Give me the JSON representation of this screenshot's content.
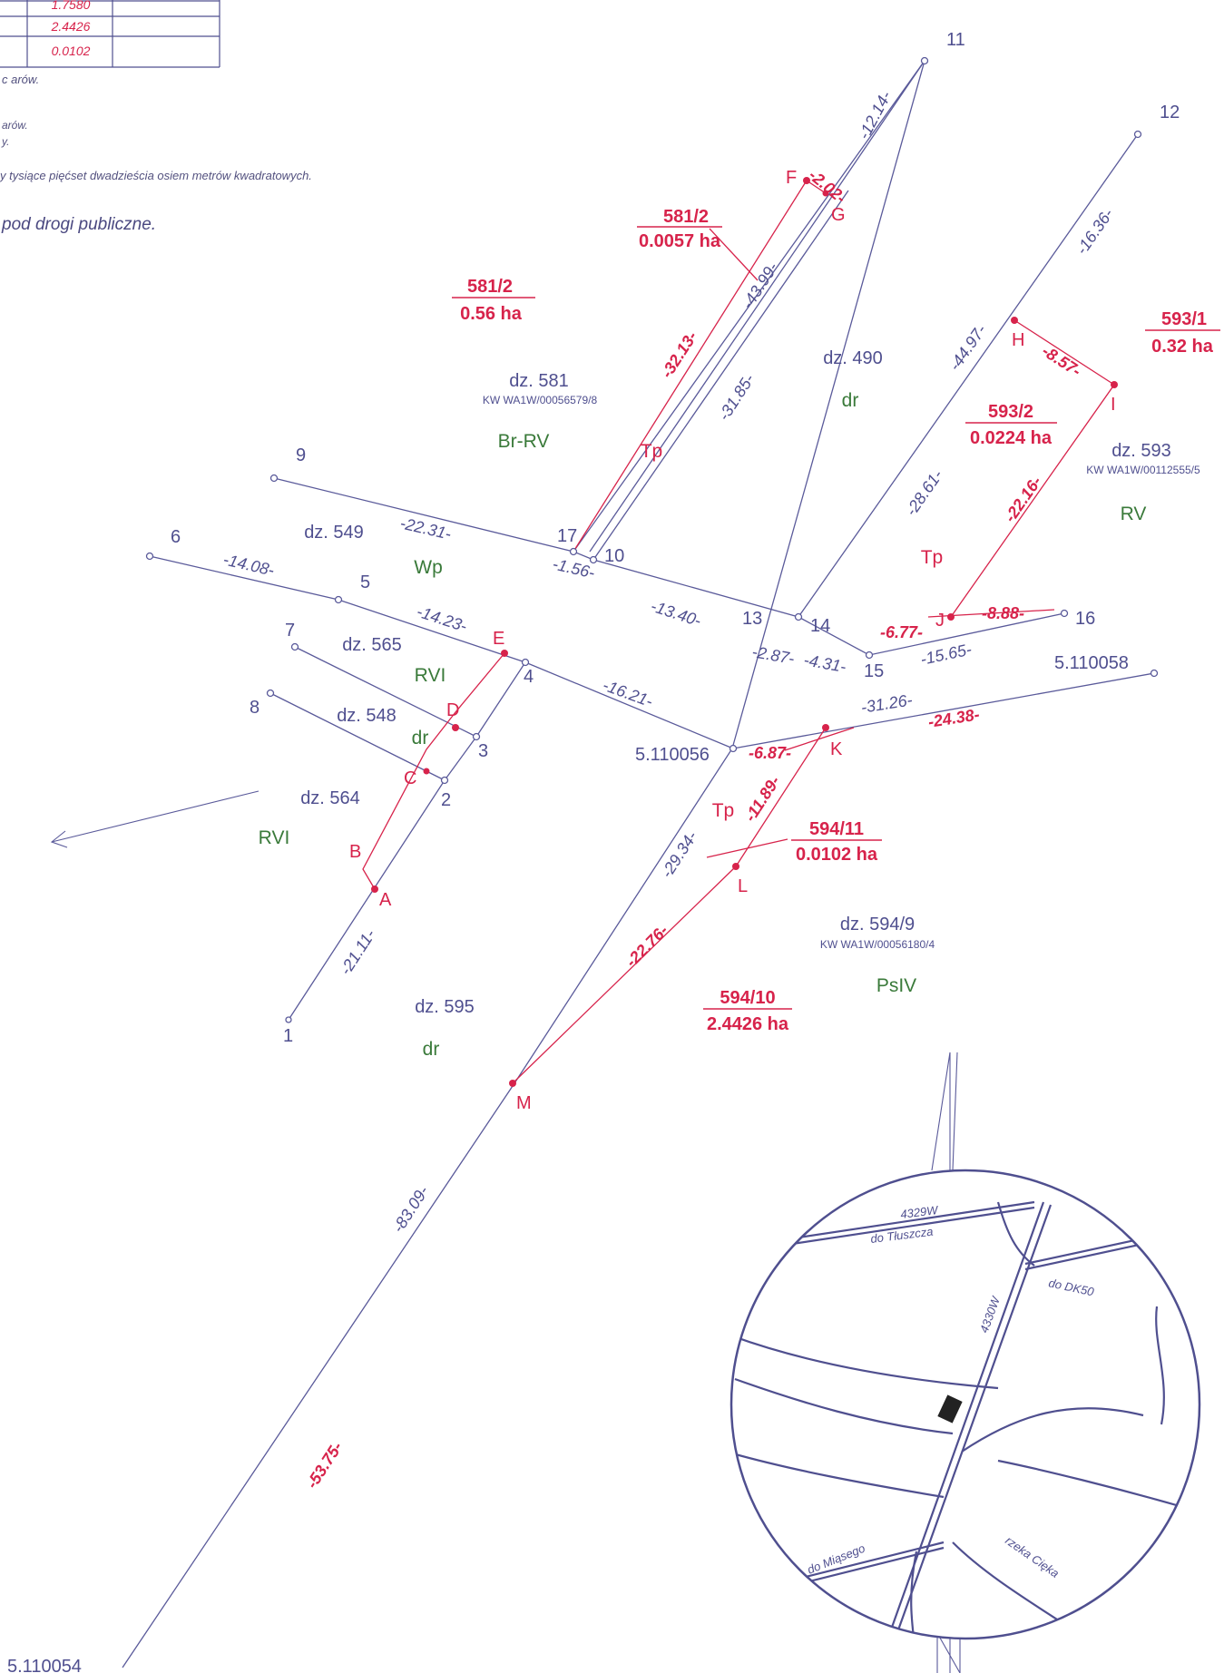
{
  "table": {
    "rows": [
      {
        "value": "1.7580"
      },
      {
        "value": "2.4426"
      },
      {
        "value": "0.0102"
      }
    ]
  },
  "notes": {
    "line1": "c arów.",
    "line2": "arów.",
    "line3": "y.",
    "line4": "y tysiące pięćset dwadzieścia osiem metrów kwadratowych.",
    "line5": "pod drogi publiczne."
  },
  "points": {
    "p1": "1",
    "p2": "2",
    "p3": "3",
    "p4": "4",
    "p5": "5",
    "p6": "6",
    "p7": "7",
    "p8": "8",
    "p9": "9",
    "p10": "10",
    "p11": "11",
    "p12": "12",
    "p13": "13",
    "p14": "14",
    "p15": "15",
    "p16": "16",
    "p17": "17",
    "g056": "5.110056",
    "g058": "5.110058",
    "g054": "5.110054",
    "A": "A",
    "B": "B",
    "C": "C",
    "D": "D",
    "E": "E",
    "F": "F",
    "G": "G",
    "H": "H",
    "I": "I",
    "J": "J",
    "K": "K",
    "L": "L",
    "M": "M"
  },
  "dims_blue": {
    "d1": "-12.14-",
    "d2": "-16.36-",
    "d3": "-43.99-",
    "d4": "-31.85-",
    "d5": "-44.97-",
    "d6": "-28.61-",
    "d7": "-22.31-",
    "d8": "-1.56-",
    "d9": "-14.08-",
    "d10": "-14.23-",
    "d11": "-13.40-",
    "d12": "-2.87-",
    "d13": "-4.31-",
    "d14": "-15.65-",
    "d15": "-16.21-",
    "d16": "-31.26-",
    "d17": "-21.11-",
    "d18": "-29.34-",
    "d19": "-83.09-"
  },
  "dims_red": {
    "r1": "-2.02-",
    "r2": "-32.13-",
    "r3": "-8.57-",
    "r4": "-22.16-",
    "r5": "-6.77-",
    "r6": "-8.88-",
    "r7": "-6.87-",
    "r8": "-24.38-",
    "r9": "-11.89-",
    "r10": "-22.76-",
    "r11": "-53.75-"
  },
  "parcels": {
    "a1": {
      "num": "581/2",
      "area": "0.0057 ha"
    },
    "a2": {
      "num": "581/2",
      "area": "0.56 ha"
    },
    "a3": {
      "num": "593/1",
      "area": "0.32 ha"
    },
    "a4": {
      "num": "593/2",
      "area": "0.0224 ha"
    },
    "a5": {
      "num": "594/11",
      "area": "0.0102 ha"
    },
    "a6": {
      "num": "594/10",
      "area": "2.4426 ha"
    }
  },
  "lots": {
    "l490": "dz. 490",
    "l581": "dz. 581",
    "l581kw": "KW WA1W/00056579/8",
    "l593": "dz. 593",
    "l593kw": "KW WA1W/00112555/5",
    "l549": "dz. 549",
    "l565": "dz. 565",
    "l548": "dz. 548",
    "l564": "dz. 564",
    "l595": "dz. 595",
    "l5949": "dz. 594/9",
    "l5949kw": "KW WA1W/00056180/4"
  },
  "classes": {
    "c1": "dr",
    "c2": "Br-RV",
    "c3": "RV",
    "c4": "Wp",
    "c5": "RVI",
    "c6": "dr",
    "c7": "RVI",
    "c8": "dr",
    "c9": "PsIV",
    "t1": "Tp",
    "t2": "Tp",
    "t3": "Tp"
  },
  "inset": {
    "road1": "4329W",
    "to1": "do Tłuszcza",
    "road2": "4330W",
    "to2": "do DK50",
    "to3": "do Miąsego",
    "river": "rzeka Cięka"
  },
  "colors": {
    "blue": "#4f4f8f",
    "red": "#d7234b",
    "green": "#3a7a3a"
  }
}
